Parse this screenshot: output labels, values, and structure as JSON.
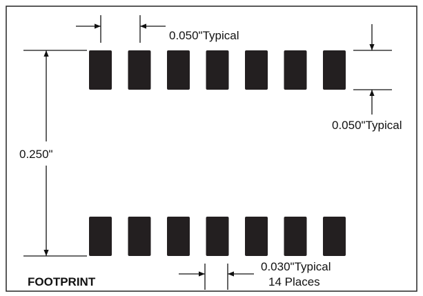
{
  "diagram": {
    "title": "FOOTPRINT",
    "labels": {
      "pitch": "0.050\"Typical",
      "pad_height": "0.050\"Typical",
      "row_spacing": "0.250\"",
      "pad_width_line1": "0.030\"Typical",
      "pad_width_line2": "14 Places"
    },
    "pads": {
      "per_row": 7,
      "rows": 2,
      "total": 14
    },
    "colors": {
      "pad": "#231f20",
      "line": "#111111",
      "border": "#222222",
      "background": "#ffffff"
    }
  }
}
